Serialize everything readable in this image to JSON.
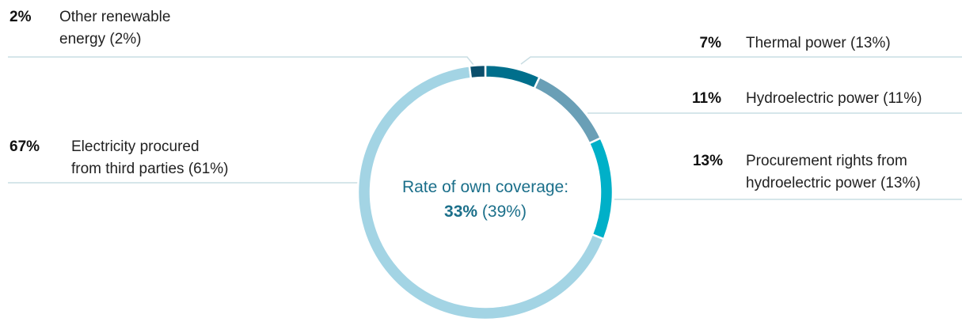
{
  "chart_data": {
    "type": "donut",
    "categories": [
      "Thermal power (13%)",
      "Hydroelectric power (11%)",
      "Procurement rights from\nhydroelectric power (13%)",
      "Electricity procured\nfrom third parties (61%)",
      "Other renewable\nenergy (2%)"
    ],
    "values": [
      7,
      11,
      13,
      67,
      2
    ],
    "value_labels": [
      "7%",
      "11%",
      "13%",
      "67%",
      "2%"
    ],
    "colors": [
      "#006f8c",
      "#6a9fb6",
      "#00b0c8",
      "#a3d4e4",
      "#0b4f6c"
    ],
    "center_label": "Rate of own coverage:",
    "center_value": "33%",
    "center_previous": "(39%)"
  }
}
